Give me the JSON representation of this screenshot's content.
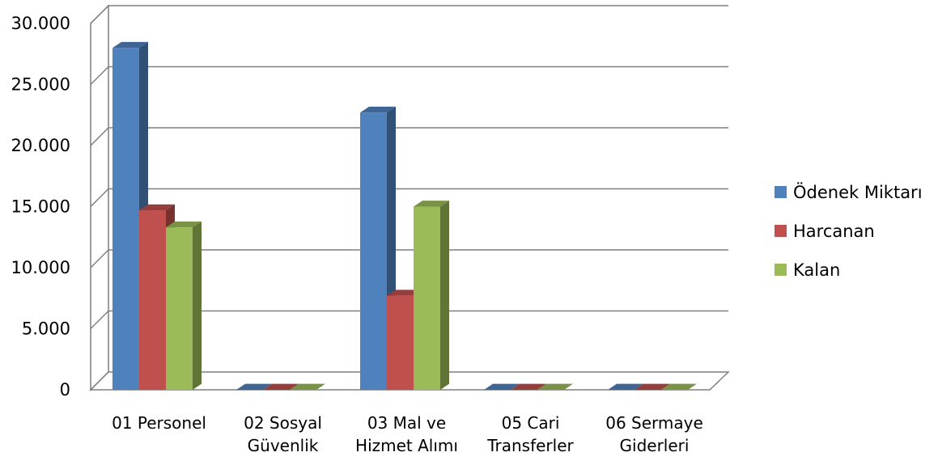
{
  "chart_data": {
    "type": "bar",
    "title": "",
    "xlabel": "",
    "ylabel": "",
    "ylim": [
      0,
      30000
    ],
    "ytick_values": [
      0,
      5000,
      10000,
      15000,
      20000,
      25000,
      30000
    ],
    "ytick_labels": [
      "0",
      "5.000",
      "10.000",
      "15.000",
      "20.000",
      "25.000",
      "30.000"
    ],
    "grid": true,
    "three_d": true,
    "legend_position": "right",
    "categories": [
      [
        "01 Personel"
      ],
      [
        "02 Sosyal",
        "Güvenlik"
      ],
      [
        "03 Mal ve",
        "Hizmet Alımı"
      ],
      [
        "05 Cari",
        "Transferler"
      ],
      [
        "06 Sermaye",
        "Giderleri"
      ]
    ],
    "series": [
      {
        "name": "Ödenek Miktarı",
        "color": "#4F81BD",
        "values": [
          28000,
          0,
          22700,
          0,
          0
        ]
      },
      {
        "name": "Harcanan",
        "color": "#C0504D",
        "values": [
          14700,
          0,
          7700,
          0,
          0
        ]
      },
      {
        "name": "Kalan",
        "color": "#9BBB59",
        "values": [
          13300,
          0,
          15000,
          0,
          0
        ]
      }
    ]
  }
}
